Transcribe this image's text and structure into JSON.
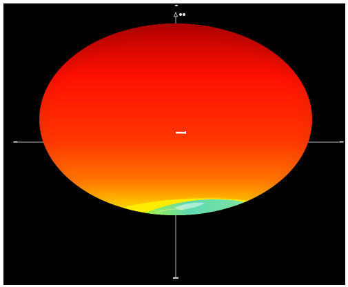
{
  "viewer": {
    "colors": {
      "background": "#000000",
      "axis": "#b7b7c6",
      "surface_top": "#b90000",
      "surface_mid": "#ff2000",
      "surface_bottom": "#ffd400",
      "surface_highlight": "#5fe0b0"
    },
    "icons": [
      "axis-top-arrow-icon",
      "viewer-control-dots-icon"
    ]
  }
}
